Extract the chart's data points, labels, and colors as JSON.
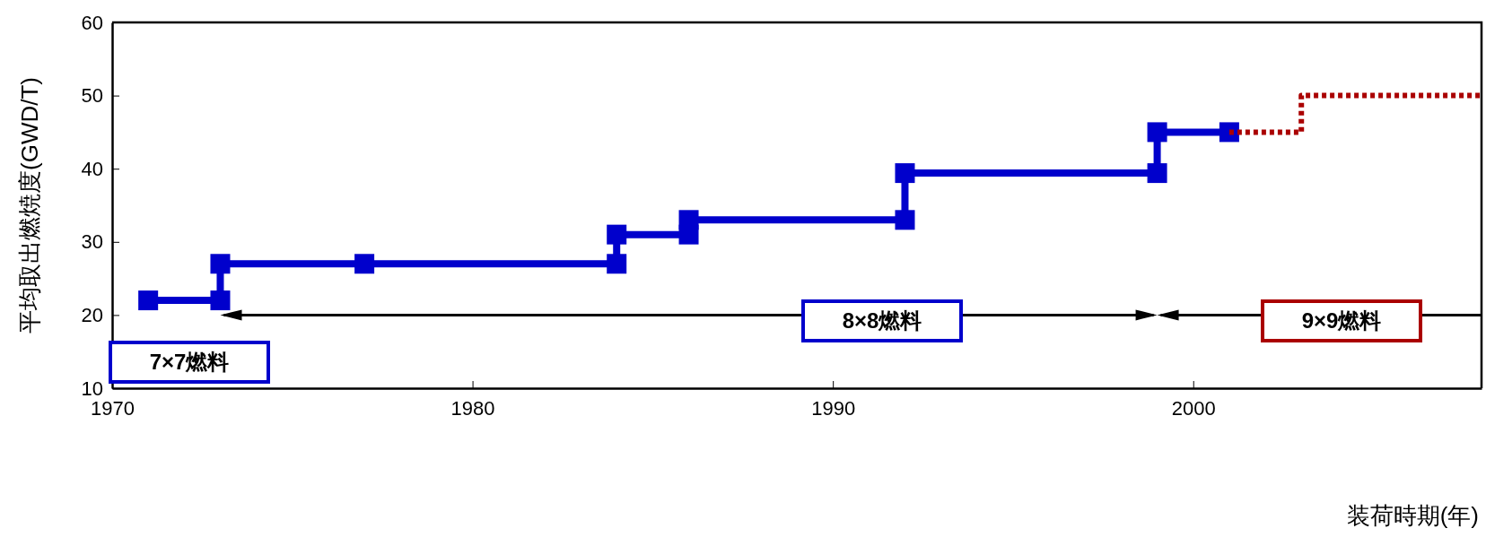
{
  "chart_data": {
    "type": "line",
    "ylabel": "平均取出燃焼度(GWD/T)",
    "xlabel": "装荷時期(年)",
    "xlim": [
      1970,
      2008
    ],
    "ylim": [
      10,
      60
    ],
    "xticks": [
      1970,
      1980,
      1990,
      2000
    ],
    "yticks": [
      10,
      20,
      30,
      40,
      50,
      60
    ],
    "series": [
      {
        "color": "#0000cc",
        "marker": "square",
        "line_style": "solid",
        "x": [
          1971,
          1973,
          1973,
          1977,
          1984,
          1984,
          1986,
          1986,
          1992,
          1992,
          1999,
          1999,
          2001
        ],
        "values": [
          22,
          22,
          27,
          27,
          27,
          31,
          31,
          33,
          33,
          39.4,
          39.4,
          45,
          45
        ]
      },
      {
        "color": "#aa0000",
        "marker": "none",
        "line_style": "dotted",
        "x": [
          2001,
          2003,
          2003,
          2008
        ],
        "values": [
          45,
          45,
          50,
          50
        ]
      }
    ],
    "annotations": [
      "7×7燃料",
      "8×8燃料",
      "9×9燃料"
    ]
  }
}
